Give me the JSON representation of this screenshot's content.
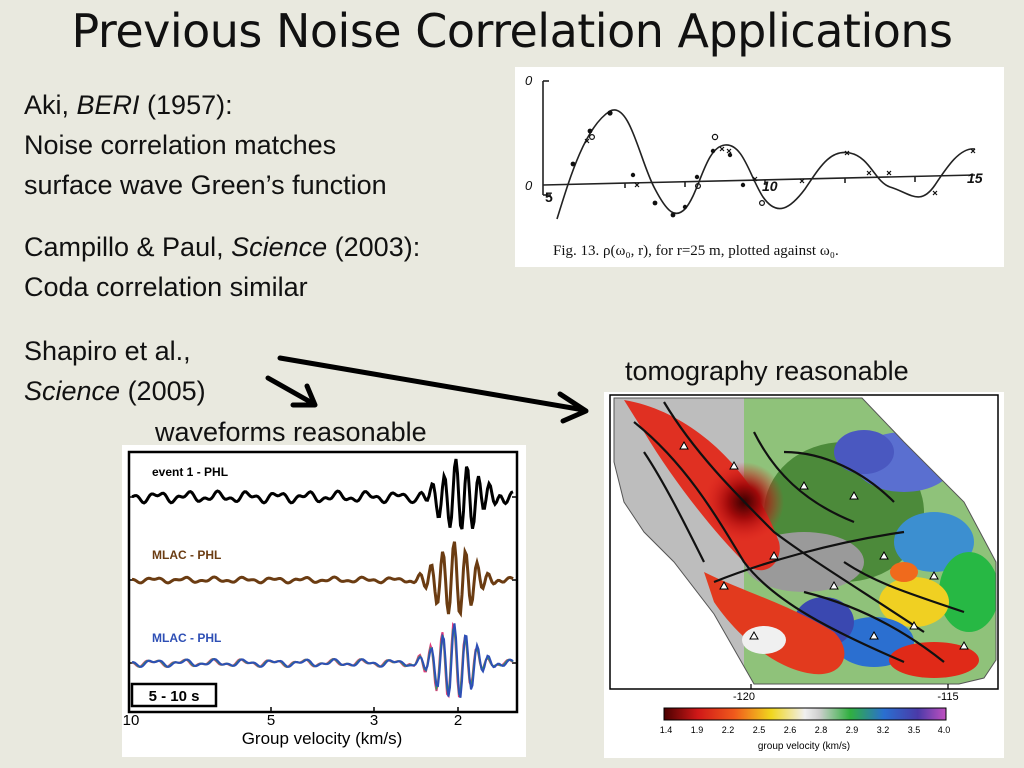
{
  "slide": {
    "title": "Previous Noise Correlation Applications"
  },
  "aki": {
    "author": "Aki, ",
    "journal": "BERI",
    "year": " (1957):",
    "line2": "Noise correlation matches",
    "line3": "surface wave Green’s function"
  },
  "campillo": {
    "author": "Campillo & Paul, ",
    "journal": "Science",
    "year": " (2003):",
    "line2": "Coda correlation similar"
  },
  "shapiro": {
    "line1": "Shapiro et al.,",
    "journal": "Science",
    "year": " (2005)"
  },
  "labels": {
    "waveforms": "waveforms reasonable",
    "tomography": "tomography reasonable"
  },
  "aki_figure": {
    "caption": "Fig. 13.   ρ(ω₀, r), for r=25 m, plotted against ω₀.",
    "y_top_tick": "0",
    "y_zero_tick": "0",
    "x_ticks": [
      "5",
      "10",
      "15"
    ]
  },
  "waveform_figure": {
    "traces": [
      "event 1 - PHL",
      "MLAC - PHL",
      "MLAC - PHL"
    ],
    "trace_colors": [
      "#000000",
      "#6b3c12",
      "#2e4fb5"
    ],
    "period_band": "5 - 10 s",
    "x_ticks": [
      "10",
      "5",
      "3",
      "2"
    ],
    "xlabel": "Group velocity (km/s)"
  },
  "map_figure": {
    "lon_ticks": [
      "-120",
      "-115"
    ],
    "colorbar_ticks": [
      "1.4",
      "1.9",
      "2.2",
      "2.5",
      "2.6",
      "2.8",
      "2.9",
      "3.2",
      "3.5",
      "4.0"
    ],
    "colorbar_label": "group velocity (km/s)"
  }
}
